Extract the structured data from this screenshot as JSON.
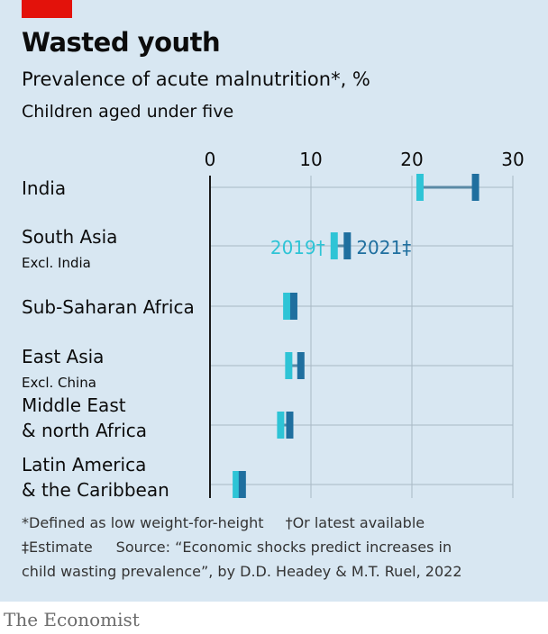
{
  "header": {
    "title": "Wasted youth",
    "subtitle": "Prevalence of acute malnutrition*, %",
    "subtitle2": "Children aged under five"
  },
  "footnotes": {
    "line1a": "*Defined as low weight-for-height",
    "line1b": "†Or latest available",
    "line2a": "‡Estimate",
    "line2b": "Source: “Economic shocks predict increases in",
    "line3": "child wasting prevalence”, by D.D. Headey & M.T. Ruel, 2022"
  },
  "brand": "The Economist",
  "colors": {
    "background": "#d8e7f2",
    "red_tag": "#e3120b",
    "color_2019": "#2ec4d6",
    "color_2021": "#1f6f9f",
    "connector": "#5a8aa5",
    "gridline": "#a8b8c4"
  },
  "chart_data": {
    "type": "dumbbell",
    "xlim": [
      0,
      30
    ],
    "ticks": [
      0,
      10,
      20,
      30
    ],
    "series_labels": {
      "a": "2019†",
      "b": "2021‡"
    },
    "rows": [
      {
        "name": "India",
        "sub": "",
        "y2019": 20.8,
        "y2021": 26.3
      },
      {
        "name": "South Asia",
        "sub": "Excl. India",
        "y2019": 12.3,
        "y2021": 13.6
      },
      {
        "name": "Sub-Saharan Africa",
        "sub": "",
        "y2019": 7.6,
        "y2021": 8.3
      },
      {
        "name": "East Asia",
        "sub": "Excl. China",
        "y2019": 7.8,
        "y2021": 9.0
      },
      {
        "name": "Middle East",
        "sub": "& north Africa",
        "y2019": 7.0,
        "y2021": 7.9
      },
      {
        "name": "Latin America",
        "sub": "& the Caribbean",
        "y2019": 2.6,
        "y2021": 3.2
      }
    ]
  }
}
